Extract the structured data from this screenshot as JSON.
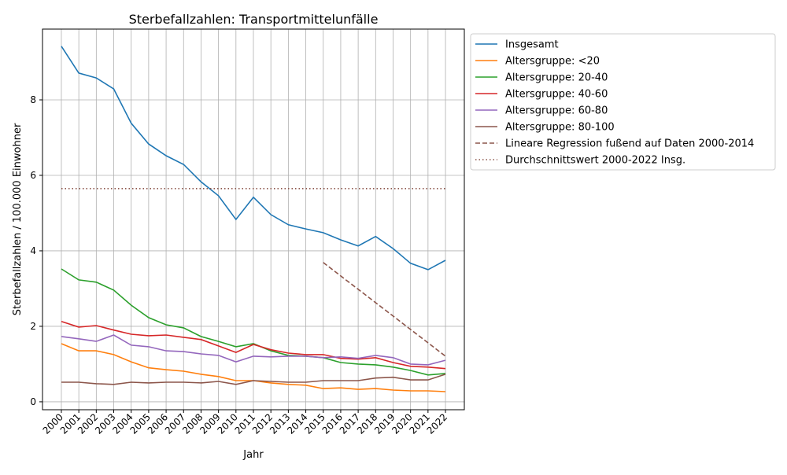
{
  "chart_data": {
    "type": "line",
    "title": "Sterbefallzahlen: Transportmittelunfälle",
    "xlabel": "Jahr",
    "ylabel": "Sterbefallzahlen / 100.000 Einwohner",
    "x": [
      2000,
      2001,
      2002,
      2003,
      2004,
      2005,
      2006,
      2007,
      2008,
      2009,
      2010,
      2011,
      2012,
      2013,
      2014,
      2015,
      2016,
      2017,
      2018,
      2019,
      2020,
      2021,
      2022
    ],
    "xlim": [
      1998.92,
      2023.08
    ],
    "ylim": [
      -0.21,
      9.875
    ],
    "yticks": [
      0,
      2,
      4,
      6,
      8
    ],
    "grid": true,
    "legend_placement": "outside-right-top",
    "series": [
      {
        "name": "Insgesamt",
        "color": "#1f77b4",
        "style": "solid",
        "values": [
          9.42,
          8.71,
          8.58,
          8.29,
          7.38,
          6.83,
          6.52,
          6.29,
          5.83,
          5.46,
          4.83,
          5.42,
          4.96,
          4.69,
          4.58,
          4.48,
          4.29,
          4.13,
          4.38,
          4.06,
          3.67,
          3.5,
          3.75
        ]
      },
      {
        "name": "Altersgruppe: <20",
        "color": "#ff7f0e",
        "style": "solid",
        "values": [
          1.54,
          1.35,
          1.35,
          1.25,
          1.06,
          0.9,
          0.85,
          0.81,
          0.73,
          0.67,
          0.56,
          0.56,
          0.5,
          0.46,
          0.44,
          0.35,
          0.37,
          0.33,
          0.35,
          0.31,
          0.29,
          0.29,
          0.27
        ]
      },
      {
        "name": "Altersgruppe: 20-40",
        "color": "#2ca02c",
        "style": "solid",
        "values": [
          3.52,
          3.23,
          3.17,
          2.96,
          2.56,
          2.23,
          2.04,
          1.96,
          1.73,
          1.6,
          1.46,
          1.54,
          1.35,
          1.23,
          1.21,
          1.17,
          1.04,
          1.0,
          0.98,
          0.92,
          0.83,
          0.71,
          0.75
        ]
      },
      {
        "name": "Altersgruppe: 40-60",
        "color": "#d62728",
        "style": "solid",
        "values": [
          2.13,
          1.98,
          2.02,
          1.9,
          1.79,
          1.75,
          1.77,
          1.71,
          1.65,
          1.48,
          1.31,
          1.52,
          1.38,
          1.29,
          1.25,
          1.25,
          1.15,
          1.13,
          1.17,
          1.04,
          0.94,
          0.92,
          0.88
        ]
      },
      {
        "name": "Altersgruppe: 60-80",
        "color": "#9467bd",
        "style": "solid",
        "values": [
          1.73,
          1.67,
          1.6,
          1.77,
          1.5,
          1.46,
          1.35,
          1.33,
          1.27,
          1.23,
          1.06,
          1.21,
          1.19,
          1.21,
          1.21,
          1.17,
          1.19,
          1.15,
          1.23,
          1.17,
          1.0,
          0.98,
          1.1
        ]
      },
      {
        "name": "Altersgruppe: 80-100",
        "color": "#8c564b",
        "style": "solid",
        "values": [
          0.52,
          0.52,
          0.48,
          0.46,
          0.52,
          0.5,
          0.52,
          0.52,
          0.5,
          0.54,
          0.46,
          0.56,
          0.54,
          0.52,
          0.52,
          0.56,
          0.56,
          0.56,
          0.63,
          0.65,
          0.58,
          0.58,
          0.73
        ]
      },
      {
        "name": "Lineare Regression fußend auf Daten 2000-2014",
        "color": "#8c564b",
        "style": "dashed",
        "x": [
          2015,
          2022
        ],
        "values": [
          3.69,
          1.21
        ]
      },
      {
        "name": "Durchschnittswert 2000-2022 Insg.",
        "color": "#8c564b",
        "style": "dotted",
        "x": [
          2000,
          2022
        ],
        "values": [
          5.65,
          5.65
        ]
      }
    ]
  }
}
